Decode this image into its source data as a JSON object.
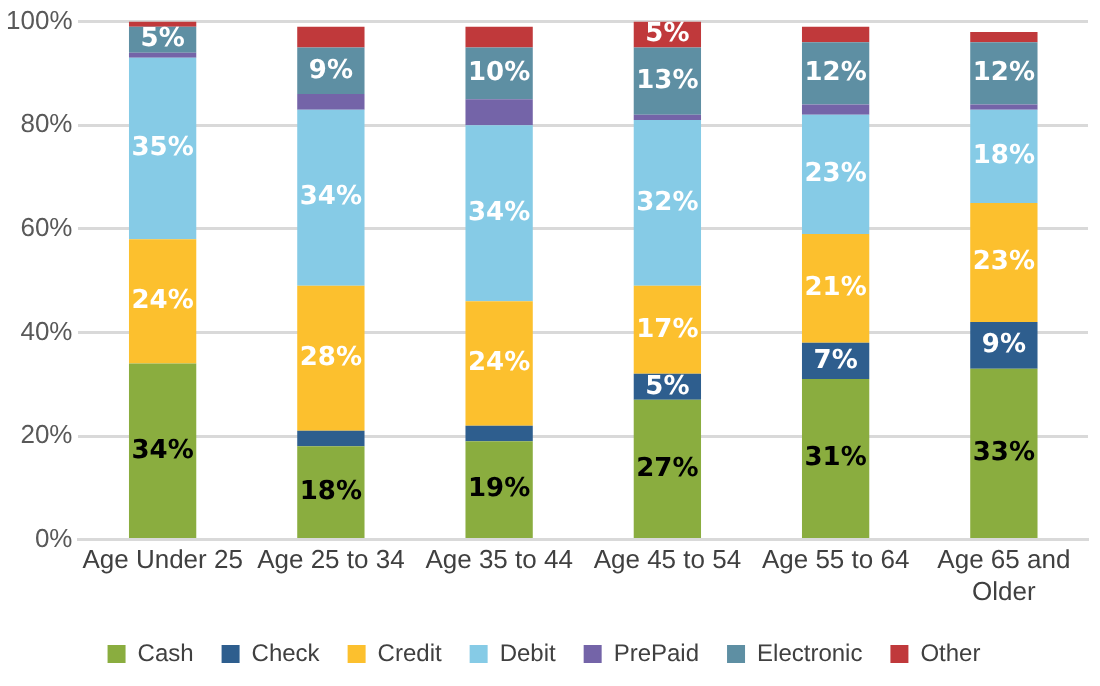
{
  "chart_data": {
    "type": "bar",
    "stacked": true,
    "categories": [
      "Age Under 25",
      "Age 25 to 34",
      "Age 35 to 44",
      "Age 45 to 54",
      "Age 55 to 64",
      "Age 65 and Older"
    ],
    "series": [
      {
        "name": "Cash",
        "color": "#8aad3f",
        "values": [
          34,
          18,
          19,
          27,
          31,
          33
        ],
        "value_labels": [
          "34%",
          "18%",
          "19%",
          "27%",
          "31%",
          "33%"
        ]
      },
      {
        "name": "Check",
        "color": "#2e5e8e",
        "values": [
          0,
          3,
          3,
          5,
          7,
          9
        ],
        "value_labels": [
          null,
          null,
          null,
          "5%",
          "7%",
          "9%"
        ]
      },
      {
        "name": "Credit",
        "color": "#fcc02e",
        "values": [
          24,
          28,
          24,
          17,
          21,
          23
        ],
        "value_labels": [
          "24%",
          "28%",
          "24%",
          "17%",
          "21%",
          "23%"
        ]
      },
      {
        "name": "Debit",
        "color": "#86cbe6",
        "values": [
          35,
          34,
          34,
          32,
          23,
          18
        ],
        "value_labels": [
          "35%",
          "34%",
          "34%",
          "32%",
          "23%",
          "18%"
        ]
      },
      {
        "name": "PrePaid",
        "color": "#7464a8",
        "values": [
          1,
          3,
          5,
          1,
          2,
          1
        ],
        "value_labels": [
          null,
          null,
          null,
          null,
          null,
          null
        ]
      },
      {
        "name": "Electronic",
        "color": "#5e8fa3",
        "values": [
          5,
          9,
          10,
          13,
          12,
          12
        ],
        "value_labels": [
          "5%",
          "9%",
          "10%",
          "13%",
          "12%",
          "12%"
        ]
      },
      {
        "name": "Other",
        "color": "#c0393b",
        "values": [
          1,
          4,
          4,
          5,
          3,
          2
        ],
        "value_labels": [
          null,
          null,
          null,
          "5%",
          null,
          null
        ]
      }
    ],
    "ylim": [
      0,
      100
    ],
    "yticks": [
      {
        "value": 0,
        "label": "0%"
      },
      {
        "value": 20,
        "label": "20%"
      },
      {
        "value": 40,
        "label": "40%"
      },
      {
        "value": 60,
        "label": "60%"
      },
      {
        "value": 80,
        "label": "80%"
      },
      {
        "value": 100,
        "label": "100%"
      }
    ],
    "grid": "y",
    "legend": "bottom"
  }
}
